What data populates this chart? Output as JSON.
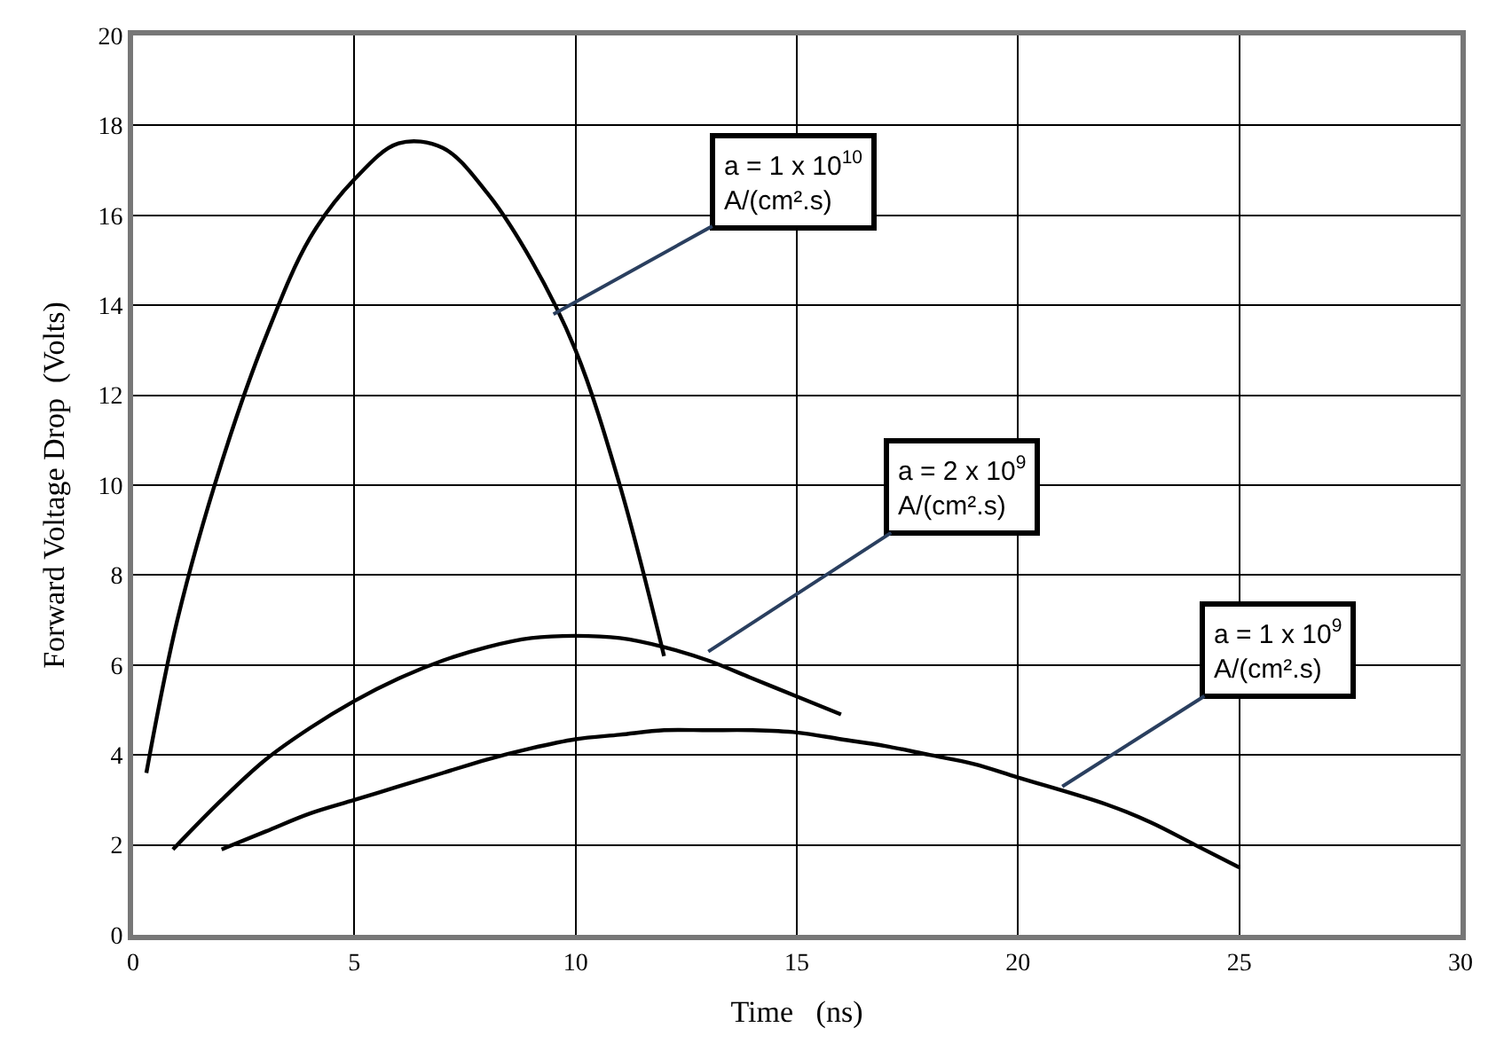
{
  "chart_data": {
    "type": "line",
    "xlabel": "Time   (ns)",
    "ylabel": "Forward Voltage Drop  (Volts)",
    "xlim": [
      0,
      30
    ],
    "xticks": [
      0,
      5,
      10,
      15,
      20,
      25,
      30
    ],
    "ylim": [
      0,
      20
    ],
    "yticks": [
      0,
      2,
      4,
      6,
      8,
      10,
      12,
      14,
      16,
      18,
      20
    ],
    "grid": true,
    "legend": false,
    "marker": "none",
    "line_style": "solid",
    "series": [
      {
        "color": "#000000",
        "x": [
          0.3,
          1,
          2,
          3,
          4,
          5,
          6,
          7,
          8,
          9,
          10,
          11,
          12
        ],
        "values": [
          3.6,
          7,
          10.5,
          13.3,
          15.5,
          16.8,
          17.6,
          17.5,
          16.5,
          15,
          13,
          10,
          6.2
        ]
      },
      {
        "color": "#000000",
        "x": [
          0.9,
          2,
          3,
          4,
          5,
          6,
          7,
          8,
          9,
          10,
          11,
          12,
          13,
          14,
          15,
          16
        ],
        "values": [
          1.9,
          3.0,
          3.9,
          4.6,
          5.2,
          5.7,
          6.1,
          6.4,
          6.6,
          6.65,
          6.6,
          6.4,
          6.1,
          5.7,
          5.3,
          4.9
        ]
      },
      {
        "color": "#000000",
        "x": [
          2,
          3,
          4,
          5,
          6,
          7,
          8,
          9,
          10,
          11,
          12,
          13,
          14,
          15,
          16,
          17,
          18,
          19,
          20,
          22,
          23,
          24,
          25
        ],
        "values": [
          1.9,
          2.3,
          2.7,
          3.0,
          3.3,
          3.6,
          3.9,
          4.15,
          4.35,
          4.45,
          4.55,
          4.55,
          4.55,
          4.5,
          4.35,
          4.2,
          4.0,
          3.8,
          3.5,
          2.9,
          2.5,
          2.0,
          1.5
        ]
      }
    ],
    "annotations": [
      {
        "text": "a = 1 x 10$^{10}$\nA/(cm².s)",
        "x": 9.5,
        "y": 13.8
      },
      {
        "text": "a = 2 x 10$^{9}$\nA/(cm².s)",
        "x": 13,
        "y": 6.3
      },
      {
        "text": "a = 1 x 10$^{9}$\nA/(cm².s)",
        "x": 21,
        "y": 3.3
      }
    ]
  }
}
